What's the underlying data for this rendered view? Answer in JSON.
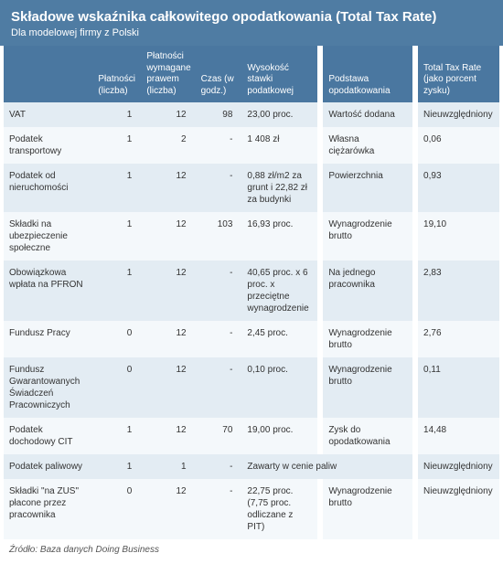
{
  "colors": {
    "header_bg": "#4f7ca3",
    "header_text": "#ffffff",
    "th_bg": "#4a77a0",
    "row_even_bg": "#e3ecf3",
    "row_odd_bg": "#f4f8fb",
    "text": "#333333"
  },
  "header": {
    "title": "Składowe wskaźnika całkowitego opodatkowania (Total Tax Rate)",
    "subtitle": "Dla modelowej firmy z Polski"
  },
  "columns": [
    {
      "key": "name",
      "label": ""
    },
    {
      "key": "payments",
      "label": "Płatności (liczba)"
    },
    {
      "key": "required",
      "label": "Płatności wymagane prawem (liczba)"
    },
    {
      "key": "time",
      "label": "Czas (w godz.)"
    },
    {
      "key": "rate",
      "label": "Wysokość stawki podatkowej"
    },
    {
      "key": "base",
      "label": "Podstawa opodatkowania"
    },
    {
      "key": "ttr",
      "label": "Total Tax Rate (jako porcent zysku)"
    }
  ],
  "rows": [
    {
      "name": "VAT",
      "payments": "1",
      "required": "12",
      "time": "98",
      "rate": "23,00 proc.",
      "base": "Wartość dodana",
      "ttr": "Nieuwzględniony"
    },
    {
      "name": "Podatek transportowy",
      "payments": "1",
      "required": "2",
      "time": "-",
      "rate": "1 408 zł",
      "base": "Własna ciężarówka",
      "ttr": "0,06"
    },
    {
      "name": "Podatek od nieruchomości",
      "payments": "1",
      "required": "12",
      "time": "-",
      "rate": "0,88 zł/m2 za grunt i 22,82 zł za budynki",
      "base": "Powierzchnia",
      "ttr": "0,93"
    },
    {
      "name": "Składki na ubezpieczenie społeczne",
      "payments": "1",
      "required": "12",
      "time": "103",
      "rate": "16,93 proc.",
      "base": "Wynagrodzenie brutto",
      "ttr": "19,10"
    },
    {
      "name": "Obowiązkowa wpłata na PFRON",
      "payments": "1",
      "required": "12",
      "time": "-",
      "rate": "40,65 proc. x 6 proc. x przeciętne wynagrodzenie",
      "base": "Na jednego pracownika",
      "ttr": "2,83"
    },
    {
      "name": "Fundusz Pracy",
      "payments": "0",
      "required": "12",
      "time": "-",
      "rate": "2,45 proc.",
      "base": "Wynagrodzenie brutto",
      "ttr": "2,76"
    },
    {
      "name": "Fundusz Gwarantowanych Świadczeń Pracowniczych",
      "payments": "0",
      "required": "12",
      "time": "-",
      "rate": "0,10 proc.",
      "base": "Wynagrodzenie brutto",
      "ttr": "0,11"
    },
    {
      "name": "Podatek dochodowy CIT",
      "payments": "1",
      "required": "12",
      "time": "70",
      "rate": "19,00 proc.",
      "base": "Zysk do opodatkowania",
      "ttr": "14,48"
    },
    {
      "name": "Podatek paliwowy",
      "payments": "1",
      "required": "1",
      "time": "-",
      "rate_span": "Zawarty w cenie paliw",
      "ttr": "Nieuwzględniony"
    },
    {
      "name": "Składki \"na ZUS\" płacone przez pracownika",
      "payments": "0",
      "required": "12",
      "time": "-",
      "rate": "22,75 proc. (7,75 proc. odliczane z PIT)",
      "base": "Wynagrodzenie brutto",
      "ttr": "Nieuwzględniony"
    }
  ],
  "source": "Źródło: Baza danych Doing Business"
}
